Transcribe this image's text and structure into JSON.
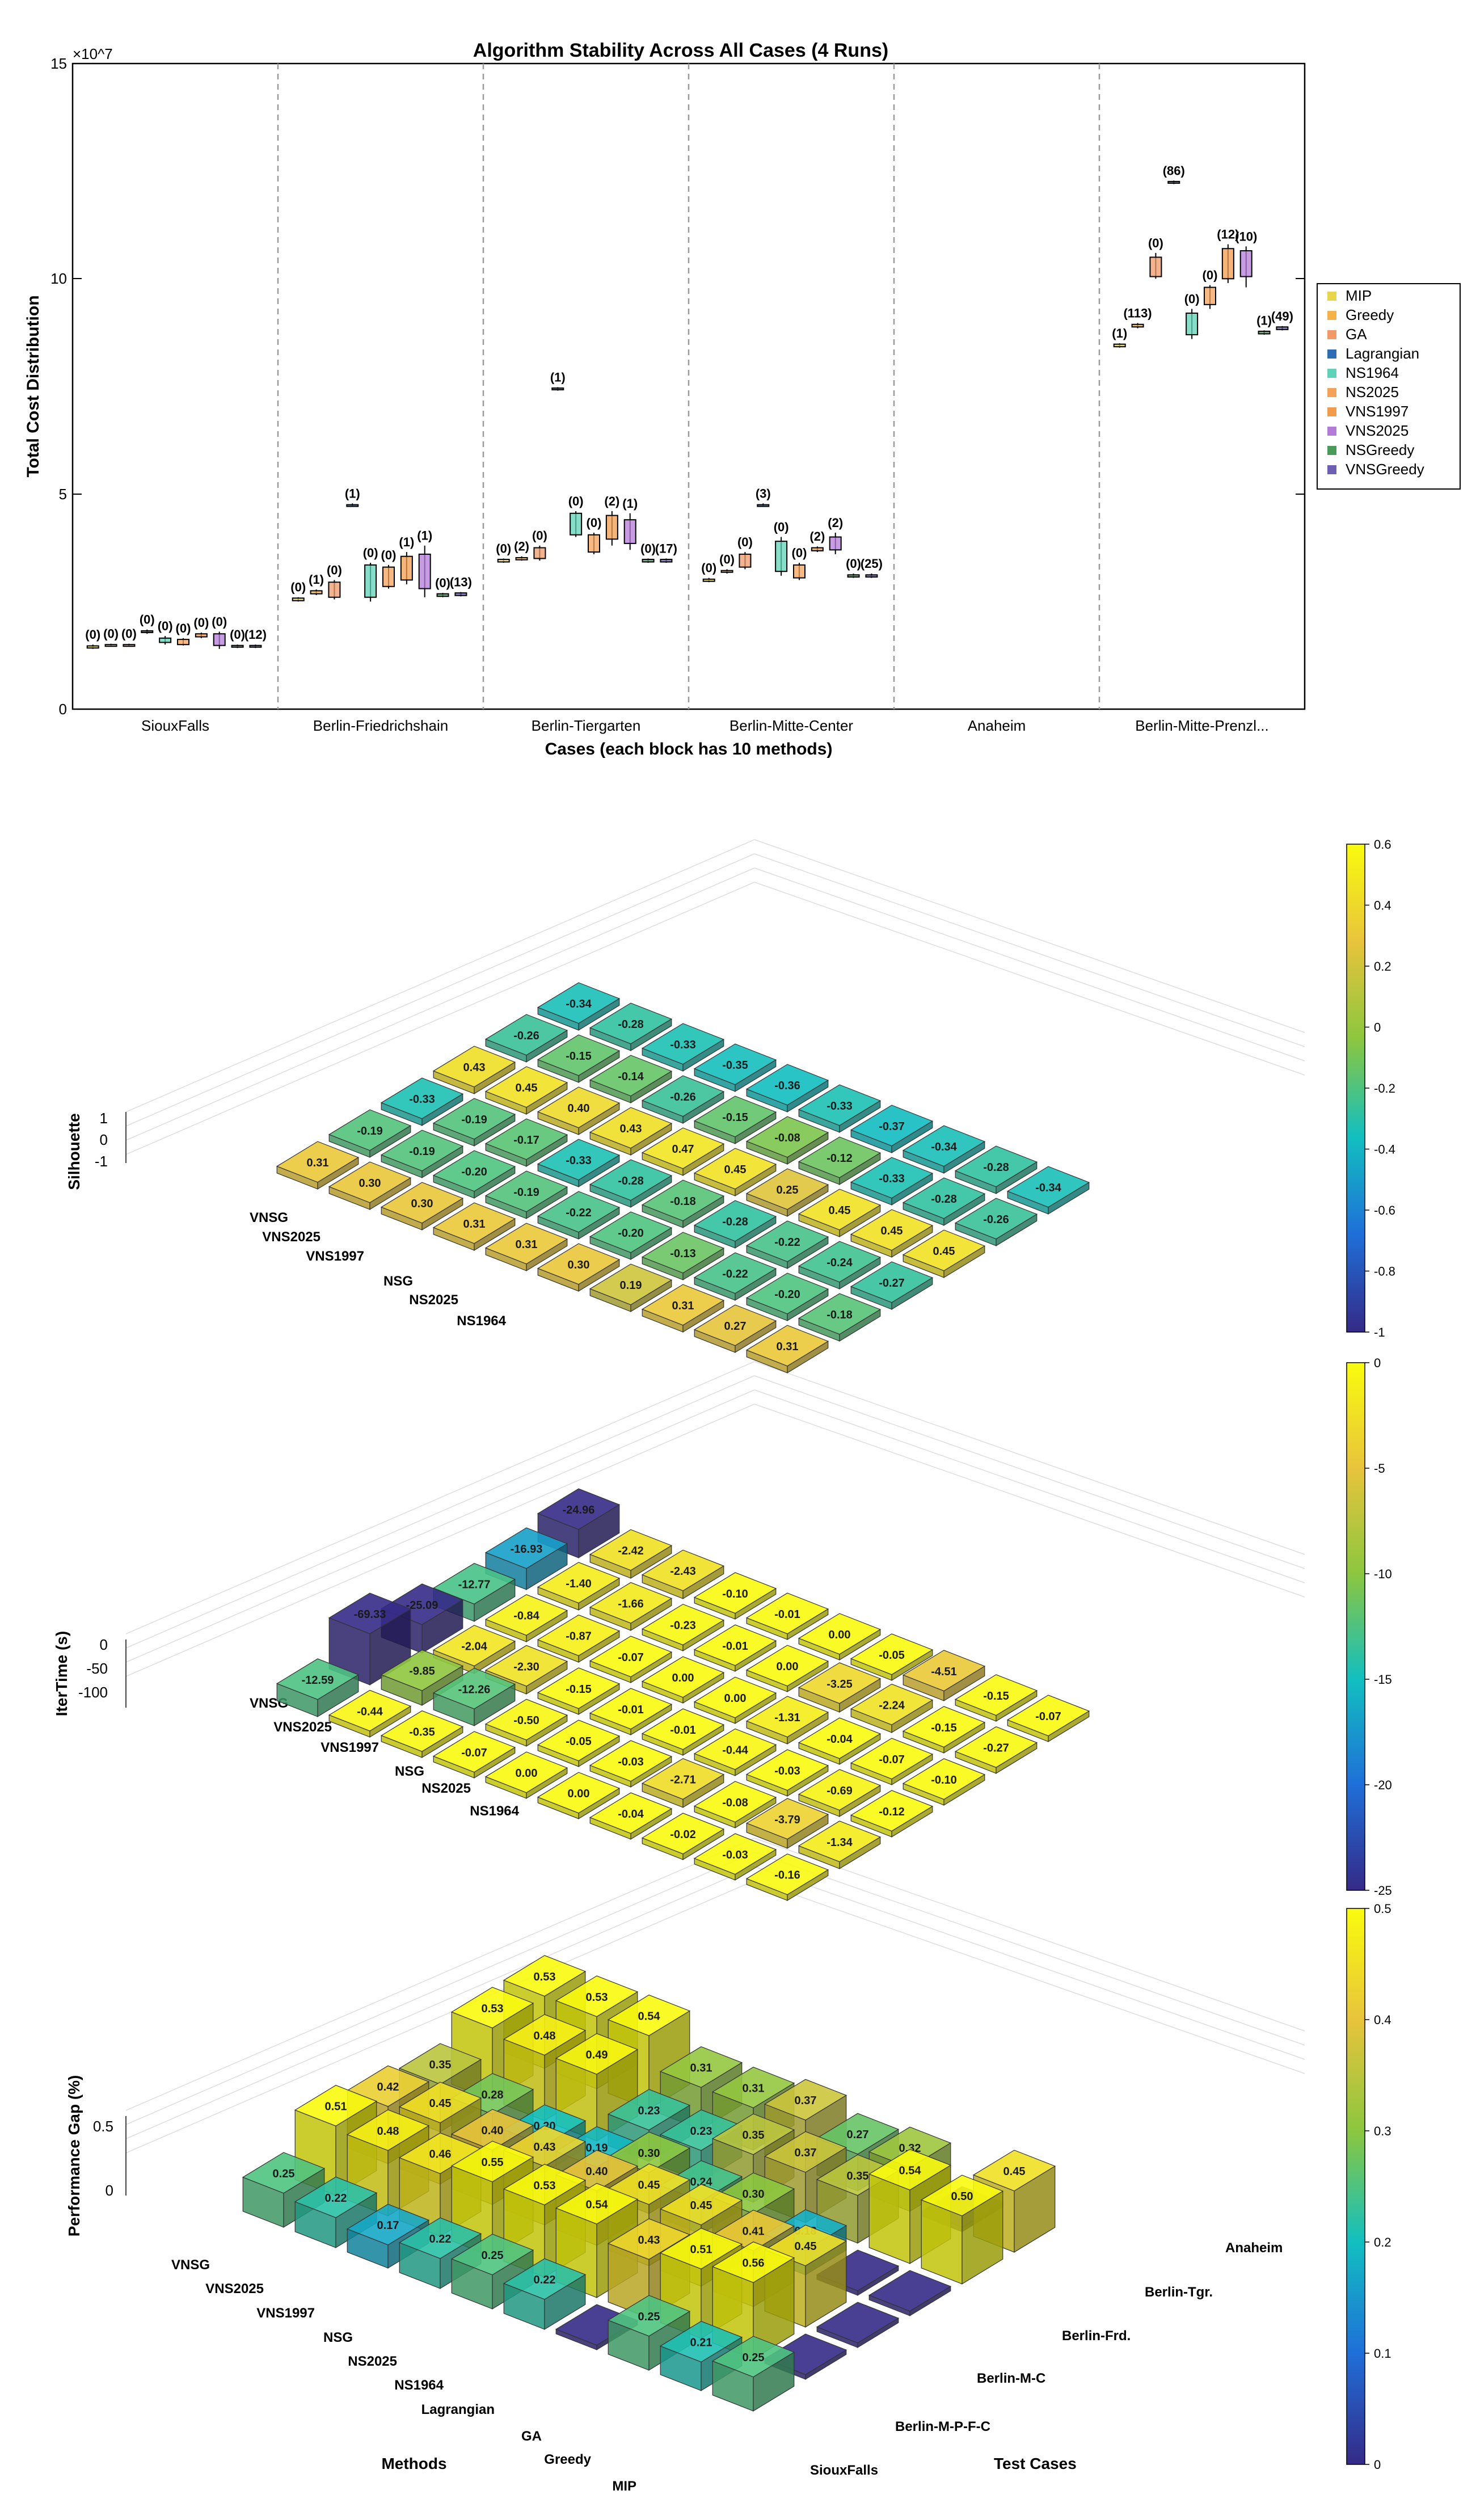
{
  "colors": {
    "axis": "#000000",
    "grid_dash": "#9a9a9a",
    "box_palette": [
      "#e8d44d",
      "#f4b24a",
      "#f09a6a",
      "#2f6db5",
      "#5fd3b6",
      "#f4a25a",
      "#f19b4c",
      "#b57bd8",
      "#4a9a5a",
      "#6f5fb2"
    ],
    "parula_stops": [
      "#352a87",
      "#1f6fd8",
      "#12bfc0",
      "#8cc63f",
      "#e8c43c",
      "#f9fb0e"
    ]
  },
  "chart_data": [
    {
      "type": "box",
      "title": "Algorithm Stability Across All Cases (4 Runs)",
      "xlabel": "Cases (each block has 10 methods)",
      "ylabel": "Total Cost Distribution",
      "yexponent": "×10^7",
      "ylim": [
        0,
        15
      ],
      "yticks": [
        "0",
        "5",
        "10",
        "15"
      ],
      "cases": [
        "SiouxFalls",
        "Berlin-Friedrichshain",
        "Berlin-Tiergarten",
        "Berlin-Mitte-Center",
        "Anaheim",
        "Berlin-Mitte-Prenzl..."
      ],
      "legend": {
        "position": "right",
        "entries": [
          "MIP",
          "Greedy",
          "GA",
          "Lagrangian",
          "NS1964",
          "NS2025",
          "VNS1997",
          "VNS2025",
          "NSGreedy",
          "VNSGreedy"
        ]
      },
      "grid": false,
      "groups": [
        {
          "case": "SiouxFalls",
          "items": [
            {
              "m": 0,
              "lo": 1.4,
              "q1": 1.42,
              "q3": 1.47,
              "hi": 1.5,
              "label": "(0)"
            },
            {
              "m": 1,
              "lo": 1.45,
              "q1": 1.46,
              "q3": 1.5,
              "hi": 1.52,
              "label": "(0)"
            },
            {
              "m": 2,
              "lo": 1.45,
              "q1": 1.46,
              "q3": 1.5,
              "hi": 1.52,
              "label": "(0)"
            },
            {
              "m": 3,
              "lo": 1.75,
              "q1": 1.78,
              "q3": 1.82,
              "hi": 1.85,
              "label": "(0)"
            },
            {
              "m": 4,
              "lo": 1.5,
              "q1": 1.55,
              "q3": 1.65,
              "hi": 1.7,
              "label": "(0)"
            },
            {
              "m": 5,
              "lo": 1.48,
              "q1": 1.5,
              "q3": 1.62,
              "hi": 1.65,
              "label": "(0)"
            },
            {
              "m": 6,
              "lo": 1.65,
              "q1": 1.68,
              "q3": 1.75,
              "hi": 1.78,
              "label": "(0)"
            },
            {
              "m": 7,
              "lo": 1.4,
              "q1": 1.48,
              "q3": 1.75,
              "hi": 1.8,
              "label": "(0)"
            },
            {
              "m": 8,
              "lo": 1.42,
              "q1": 1.44,
              "q3": 1.48,
              "hi": 1.5,
              "label": "(0)"
            },
            {
              "m": 9,
              "lo": 1.42,
              "q1": 1.44,
              "q3": 1.48,
              "hi": 1.5,
              "label": "(12)"
            }
          ]
        },
        {
          "case": "Berlin-Friedrichshain",
          "items": [
            {
              "m": 0,
              "lo": 2.5,
              "q1": 2.52,
              "q3": 2.58,
              "hi": 2.6,
              "label": "(0)"
            },
            {
              "m": 1,
              "lo": 2.65,
              "q1": 2.68,
              "q3": 2.75,
              "hi": 2.78,
              "label": "(1)"
            },
            {
              "m": 2,
              "lo": 2.55,
              "q1": 2.6,
              "q3": 2.95,
              "hi": 3.0,
              "label": "(0)"
            },
            {
              "m": 3,
              "lo": 4.7,
              "q1": 4.72,
              "q3": 4.75,
              "hi": 4.78,
              "label": "(1)"
            },
            {
              "m": 4,
              "lo": 2.5,
              "q1": 2.6,
              "q3": 3.35,
              "hi": 3.4,
              "label": "(0)"
            },
            {
              "m": 5,
              "lo": 2.8,
              "q1": 2.85,
              "q3": 3.3,
              "hi": 3.35,
              "label": "(0)"
            },
            {
              "m": 6,
              "lo": 2.9,
              "q1": 3.0,
              "q3": 3.55,
              "hi": 3.65,
              "label": "(1)"
            },
            {
              "m": 7,
              "lo": 2.6,
              "q1": 2.8,
              "q3": 3.6,
              "hi": 3.8,
              "label": "(1)"
            },
            {
              "m": 8,
              "lo": 2.6,
              "q1": 2.62,
              "q3": 2.68,
              "hi": 2.7,
              "label": "(0)"
            },
            {
              "m": 9,
              "lo": 2.62,
              "q1": 2.64,
              "q3": 2.7,
              "hi": 2.72,
              "label": "(13)"
            }
          ]
        },
        {
          "case": "Berlin-Tiergarten",
          "items": [
            {
              "m": 0,
              "lo": 3.4,
              "q1": 3.42,
              "q3": 3.48,
              "hi": 3.5,
              "label": "(0)"
            },
            {
              "m": 1,
              "lo": 3.45,
              "q1": 3.47,
              "q3": 3.52,
              "hi": 3.55,
              "label": "(2)"
            },
            {
              "m": 2,
              "lo": 3.45,
              "q1": 3.5,
              "q3": 3.75,
              "hi": 3.8,
              "label": "(0)"
            },
            {
              "m": 3,
              "lo": 7.4,
              "q1": 7.42,
              "q3": 7.46,
              "hi": 7.48,
              "label": "(1)"
            },
            {
              "m": 4,
              "lo": 4.0,
              "q1": 4.05,
              "q3": 4.55,
              "hi": 4.6,
              "label": "(0)"
            },
            {
              "m": 5,
              "lo": 3.6,
              "q1": 3.65,
              "q3": 4.05,
              "hi": 4.1,
              "label": "(0)"
            },
            {
              "m": 6,
              "lo": 3.8,
              "q1": 3.95,
              "q3": 4.5,
              "hi": 4.6,
              "label": "(2)"
            },
            {
              "m": 7,
              "lo": 3.7,
              "q1": 3.85,
              "q3": 4.4,
              "hi": 4.55,
              "label": "(1)"
            },
            {
              "m": 8,
              "lo": 3.4,
              "q1": 3.42,
              "q3": 3.48,
              "hi": 3.5,
              "label": "(0)"
            },
            {
              "m": 9,
              "lo": 3.4,
              "q1": 3.42,
              "q3": 3.48,
              "hi": 3.5,
              "label": "(17)"
            }
          ]
        },
        {
          "case": "Berlin-Mitte-Center",
          "items": [
            {
              "m": 0,
              "lo": 2.95,
              "q1": 2.97,
              "q3": 3.02,
              "hi": 3.05,
              "label": "(0)"
            },
            {
              "m": 1,
              "lo": 3.15,
              "q1": 3.18,
              "q3": 3.22,
              "hi": 3.25,
              "label": "(0)"
            },
            {
              "m": 2,
              "lo": 3.25,
              "q1": 3.3,
              "q3": 3.6,
              "hi": 3.65,
              "label": "(0)"
            },
            {
              "m": 3,
              "lo": 4.7,
              "q1": 4.72,
              "q3": 4.75,
              "hi": 4.78,
              "label": "(3)"
            },
            {
              "m": 4,
              "lo": 3.1,
              "q1": 3.2,
              "q3": 3.9,
              "hi": 4.0,
              "label": "(0)"
            },
            {
              "m": 5,
              "lo": 3.0,
              "q1": 3.05,
              "q3": 3.35,
              "hi": 3.4,
              "label": "(0)"
            },
            {
              "m": 6,
              "lo": 3.65,
              "q1": 3.68,
              "q3": 3.75,
              "hi": 3.78,
              "label": "(2)"
            },
            {
              "m": 7,
              "lo": 3.6,
              "q1": 3.7,
              "q3": 4.0,
              "hi": 4.1,
              "label": "(2)"
            },
            {
              "m": 8,
              "lo": 3.05,
              "q1": 3.07,
              "q3": 3.12,
              "hi": 3.15,
              "label": "(0)"
            },
            {
              "m": 9,
              "lo": 3.05,
              "q1": 3.07,
              "q3": 3.12,
              "hi": 3.15,
              "label": "(25)"
            }
          ]
        },
        {
          "case": "Anaheim",
          "items": []
        },
        {
          "case": "Berlin-Mitte-Prenzl...",
          "items": [
            {
              "m": 0,
              "lo": 8.4,
              "q1": 8.42,
              "q3": 8.48,
              "hi": 8.5,
              "label": "(1)"
            },
            {
              "m": 1,
              "lo": 8.85,
              "q1": 8.88,
              "q3": 8.94,
              "hi": 8.97,
              "label": "(113)"
            },
            {
              "m": 2,
              "lo": 10.0,
              "q1": 10.05,
              "q3": 10.5,
              "hi": 10.6,
              "label": "(0)"
            },
            {
              "m": 3,
              "lo": 12.2,
              "q1": 12.22,
              "q3": 12.26,
              "hi": 12.28,
              "label": "(86)"
            },
            {
              "m": 4,
              "lo": 8.6,
              "q1": 8.7,
              "q3": 9.2,
              "hi": 9.3,
              "label": "(0)"
            },
            {
              "m": 5,
              "lo": 9.3,
              "q1": 9.4,
              "q3": 9.8,
              "hi": 9.85,
              "label": "(0)"
            },
            {
              "m": 6,
              "lo": 9.9,
              "q1": 10.0,
              "q3": 10.7,
              "hi": 10.8,
              "label": "(12)"
            },
            {
              "m": 7,
              "lo": 9.8,
              "q1": 10.05,
              "q3": 10.65,
              "hi": 10.75,
              "label": "(10)"
            },
            {
              "m": 8,
              "lo": 8.7,
              "q1": 8.72,
              "q3": 8.78,
              "hi": 8.8,
              "label": "(1)"
            },
            {
              "m": 9,
              "lo": 8.8,
              "q1": 8.82,
              "q3": 8.88,
              "hi": 8.9,
              "label": "(49)"
            }
          ]
        }
      ]
    },
    {
      "type": "bar3d",
      "zlabel": "Silhouette",
      "zticks": [
        "1",
        "0",
        "-1"
      ],
      "colorbar": {
        "min": -1,
        "max": 0.6,
        "ticks": [
          "0.6",
          "0.4",
          "0.2",
          "0",
          "-0.2",
          "-0.4",
          "-0.6",
          "-0.8",
          "-1"
        ]
      },
      "row_labels": [
        "VNSG",
        "VNS2025",
        "VNS1997",
        "NSG",
        "NS2025",
        "NS1964"
      ],
      "rows": [
        [
          0.31,
          -0.19,
          -0.33,
          0.43,
          -0.26,
          -0.34
        ],
        [
          0.3,
          -0.19,
          -0.19,
          0.45,
          -0.15,
          -0.28
        ],
        [
          0.3,
          -0.2,
          -0.17,
          0.4,
          -0.14,
          -0.33
        ],
        [
          0.31,
          -0.19,
          -0.33,
          0.43,
          -0.26,
          -0.35
        ],
        [
          0.31,
          -0.22,
          -0.28,
          0.47,
          -0.15,
          -0.36
        ],
        [
          0.3,
          -0.2,
          -0.18,
          0.45,
          -0.08,
          -0.33
        ],
        [
          0.19,
          -0.13,
          -0.28,
          0.25,
          -0.12,
          -0.37
        ],
        [
          0.31,
          -0.22,
          -0.22,
          0.45,
          -0.33,
          -0.34
        ],
        [
          0.27,
          -0.2,
          -0.24,
          0.45,
          -0.28,
          -0.28
        ],
        [
          0.31,
          -0.18,
          -0.27,
          0.45,
          -0.26,
          -0.34
        ]
      ]
    },
    {
      "type": "bar3d",
      "zlabel": "IterTime (s)",
      "zticks": [
        "0",
        "-50",
        "-100"
      ],
      "colorbar": {
        "min": -25,
        "max": 0,
        "ticks": [
          "0",
          "-5",
          "-10",
          "-15",
          "-20",
          "-25"
        ]
      },
      "row_labels": [
        "VNSG",
        "VNS2025",
        "VNS1997",
        "NSG",
        "NS2025",
        "NS1964"
      ],
      "rows": [
        [
          -12.59,
          -69.33,
          -25.09,
          -12.77,
          -16.93,
          -24.96
        ],
        [
          -0.44,
          -9.85,
          -2.04,
          -0.84,
          -1.4,
          -2.42
        ],
        [
          -0.35,
          -12.26,
          -2.3,
          -0.87,
          -1.66,
          -2.43
        ],
        [
          -0.07,
          -0.5,
          -0.15,
          -0.07,
          -0.23,
          -0.1
        ],
        [
          -0.0,
          -0.05,
          -0.01,
          -0.0,
          -0.01,
          -0.01
        ],
        [
          -0.0,
          -0.03,
          -0.01,
          -0.0,
          -0.0,
          -0.0
        ],
        [
          -0.04,
          -2.71,
          -0.44,
          -1.31,
          -3.25,
          -0.05
        ],
        [
          -0.02,
          -0.08,
          -0.03,
          -0.04,
          -2.24,
          -4.51
        ],
        [
          -0.03,
          -3.79,
          -0.69,
          -0.07,
          -0.15,
          -0.15
        ],
        [
          -0.16,
          -1.34,
          -0.12,
          -0.1,
          -0.27,
          -0.07
        ]
      ]
    },
    {
      "type": "bar3d",
      "zlabel": "Performance Gap (%)",
      "zticks": [
        "0.5",
        "0"
      ],
      "colorbar": {
        "min": 0,
        "max": 0.5,
        "ticks": [
          "0.5",
          "0.4",
          "0.3",
          "0.2",
          "0.1",
          "0"
        ]
      },
      "xlabel": "Methods",
      "ylabel": "Test Cases",
      "method_labels": [
        "VNSG",
        "VNS2025",
        "VNS1997",
        "NSG",
        "NS2025",
        "NS1964",
        "Lagrangian",
        "GA",
        "Greedy",
        "MIP"
      ],
      "case_labels": [
        "SiouxFalls",
        "Berlin-M-P-F-C",
        "Berlin-M-C",
        "Berlin-Frd.",
        "Berlin-Tgr.",
        "Anaheim"
      ],
      "rows": [
        [
          0.25,
          0.51,
          0.42,
          0.35,
          0.53,
          0.53
        ],
        [
          0.22,
          0.48,
          0.45,
          0.28,
          0.48,
          0.53
        ],
        [
          0.17,
          0.46,
          0.4,
          0.2,
          0.49,
          0.54
        ],
        [
          0.22,
          0.55,
          0.43,
          0.19,
          0.23,
          0.31
        ],
        [
          0.25,
          0.53,
          0.4,
          0.3,
          0.23,
          0.31
        ],
        [
          0.22,
          0.54,
          0.45,
          0.24,
          0.35,
          0.37
        ],
        [
          0.0,
          0.43,
          0.45,
          0.3,
          0.37,
          0.27
        ],
        [
          0.25,
          0.51,
          0.41,
          0.18,
          0.35,
          0.32
        ],
        [
          0.21,
          0.56,
          0.45,
          0.0,
          0.54,
          0.0
        ],
        [
          0.25,
          0.0,
          0.0,
          0.0,
          0.5,
          0.45
        ]
      ]
    }
  ]
}
